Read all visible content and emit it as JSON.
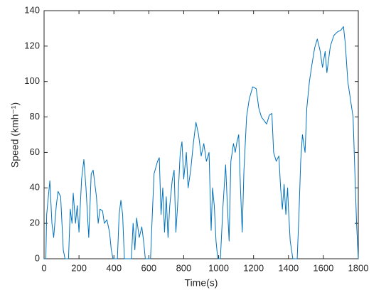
{
  "chart_data": {
    "type": "line",
    "color": "#0072BD",
    "xlabel": "Time(s)",
    "ylabel": "Speed (kmh⁻¹)",
    "xlim": [
      0,
      1800
    ],
    "xticks": [
      0,
      200,
      400,
      600,
      800,
      1000,
      1200,
      1400,
      1600,
      1800
    ],
    "ylim": [
      0,
      140
    ],
    "yticks": [
      0,
      20,
      40,
      60,
      80,
      100,
      120,
      140
    ],
    "x": [
      0,
      10,
      15,
      33,
      45,
      55,
      70,
      80,
      95,
      110,
      120,
      140,
      150,
      160,
      167,
      180,
      190,
      200,
      215,
      228,
      240,
      256,
      270,
      281,
      300,
      310,
      320,
      335,
      345,
      360,
      375,
      385,
      395,
      420,
      430,
      440,
      450,
      460,
      500,
      510,
      520,
      530,
      545,
      560,
      570,
      580,
      610,
      620,
      630,
      650,
      660,
      670,
      680,
      690,
      700,
      710,
      720,
      735,
      745,
      755,
      765,
      780,
      790,
      800,
      815,
      825,
      840,
      855,
      870,
      885,
      900,
      915,
      930,
      945,
      957,
      965,
      975,
      985,
      995,
      1010,
      1025,
      1040,
      1050,
      1060,
      1070,
      1085,
      1095,
      1105,
      1115,
      1125,
      1135,
      1145,
      1160,
      1175,
      1195,
      1215,
      1230,
      1245,
      1260,
      1275,
      1290,
      1305,
      1315,
      1330,
      1345,
      1355,
      1365,
      1375,
      1385,
      1395,
      1400,
      1410,
      1425,
      1450,
      1460,
      1470,
      1480,
      1495,
      1505,
      1520,
      1535,
      1550,
      1565,
      1580,
      1595,
      1610,
      1620,
      1640,
      1660,
      1680,
      1700,
      1715,
      1725,
      1740,
      1755,
      1770,
      1780,
      1790,
      1800
    ],
    "values": [
      0,
      0,
      25,
      44,
      20,
      12,
      30,
      38,
      35,
      5,
      0,
      0,
      28,
      20,
      37,
      20,
      30,
      15,
      45,
      56,
      40,
      12,
      48,
      50,
      35,
      20,
      28,
      27,
      20,
      22,
      15,
      5,
      0,
      0,
      25,
      33,
      25,
      0,
      0,
      20,
      5,
      23,
      12,
      18,
      10,
      0,
      0,
      25,
      48,
      55,
      57,
      25,
      40,
      15,
      35,
      12,
      30,
      45,
      50,
      15,
      30,
      60,
      66,
      45,
      60,
      40,
      50,
      65,
      77,
      70,
      58,
      65,
      55,
      60,
      16,
      40,
      30,
      10,
      0,
      0,
      30,
      53,
      30,
      10,
      55,
      65,
      60,
      66,
      70,
      40,
      15,
      50,
      80,
      90,
      97,
      96,
      85,
      80,
      78,
      76,
      81,
      82,
      60,
      55,
      58,
      40,
      28,
      42,
      25,
      40,
      28,
      10,
      0,
      0,
      25,
      55,
      70,
      60,
      85,
      100,
      110,
      119,
      124,
      118,
      108,
      117,
      105,
      120,
      126,
      128,
      129,
      131,
      122,
      100,
      90,
      80,
      50,
      20,
      0
    ]
  }
}
